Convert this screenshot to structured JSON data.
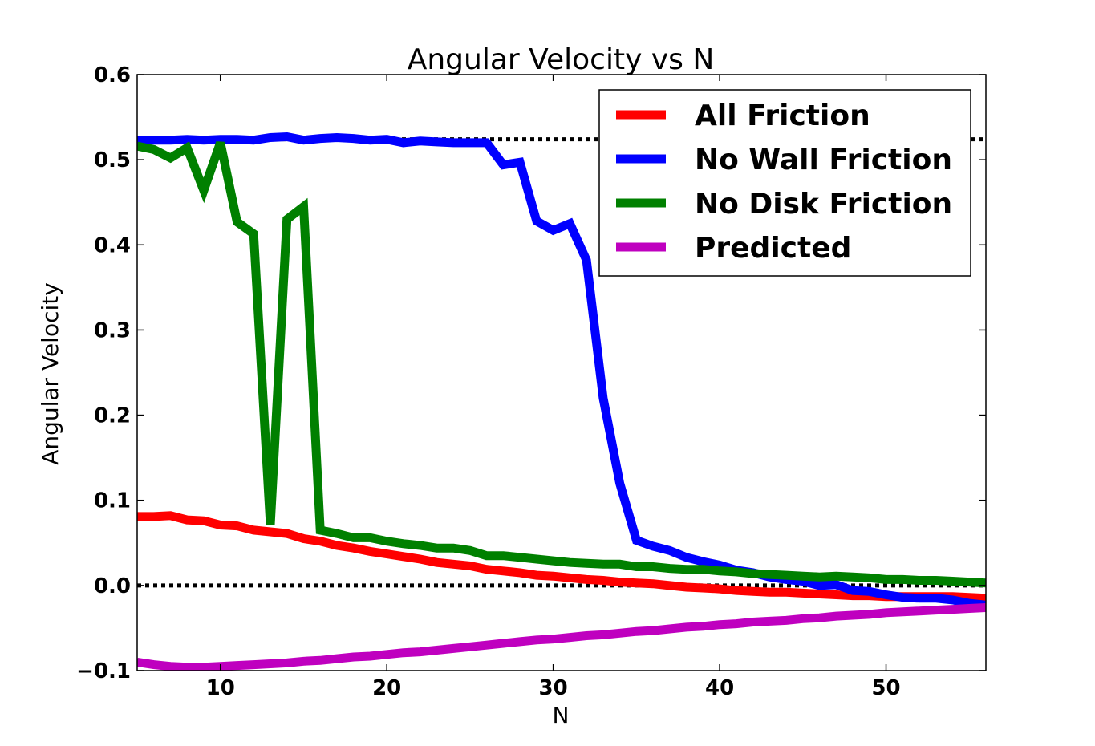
{
  "chart_data": {
    "type": "line",
    "title": "Angular Velocity vs N",
    "xlabel": "N",
    "ylabel": "Angular Velocity",
    "xlim": [
      5,
      56
    ],
    "ylim": [
      -0.1,
      0.6
    ],
    "xticks": [
      10,
      20,
      30,
      40,
      50
    ],
    "xtick_labels": [
      "10",
      "20",
      "30",
      "40",
      "50"
    ],
    "yticks": [
      -0.1,
      0.0,
      0.1,
      0.2,
      0.3,
      0.4,
      0.5,
      0.6
    ],
    "ytick_labels": [
      "−0.1",
      "0.0",
      "0.1",
      "0.2",
      "0.3",
      "0.4",
      "0.5",
      "0.6"
    ],
    "grid": false,
    "legend_position": "top-right",
    "reference_lines": [
      {
        "y": 0.524,
        "style": "dotted",
        "color": "#000000"
      },
      {
        "y": 0.0,
        "style": "dotted",
        "color": "#000000"
      }
    ],
    "x": [
      5,
      6,
      7,
      8,
      9,
      10,
      11,
      12,
      13,
      14,
      15,
      16,
      17,
      18,
      19,
      20,
      21,
      22,
      23,
      24,
      25,
      26,
      27,
      28,
      29,
      30,
      31,
      32,
      33,
      34,
      35,
      36,
      37,
      38,
      39,
      40,
      41,
      42,
      43,
      44,
      45,
      46,
      47,
      48,
      49,
      50,
      51,
      52,
      53,
      54,
      55,
      56
    ],
    "series": [
      {
        "name": "All Friction",
        "color": "#ff0000",
        "values": [
          0.081,
          0.081,
          0.082,
          0.077,
          0.076,
          0.071,
          0.07,
          0.065,
          0.063,
          0.061,
          0.055,
          0.052,
          0.047,
          0.044,
          0.04,
          0.037,
          0.034,
          0.031,
          0.027,
          0.025,
          0.023,
          0.019,
          0.017,
          0.015,
          0.012,
          0.011,
          0.009,
          0.007,
          0.006,
          0.004,
          0.003,
          0.002,
          0.0,
          -0.002,
          -0.003,
          -0.004,
          -0.006,
          -0.007,
          -0.008,
          -0.008,
          -0.009,
          -0.01,
          -0.011,
          -0.012,
          -0.012,
          -0.013,
          -0.013,
          -0.013,
          -0.013,
          -0.013,
          -0.014,
          -0.015
        ]
      },
      {
        "name": "No Wall Friction",
        "color": "#0000ff",
        "values": [
          0.523,
          0.523,
          0.523,
          0.524,
          0.523,
          0.524,
          0.524,
          0.523,
          0.526,
          0.527,
          0.523,
          0.525,
          0.526,
          0.525,
          0.523,
          0.524,
          0.52,
          0.522,
          0.521,
          0.52,
          0.52,
          0.52,
          0.494,
          0.497,
          0.428,
          0.417,
          0.425,
          0.382,
          0.22,
          0.12,
          0.053,
          0.046,
          0.041,
          0.033,
          0.028,
          0.024,
          0.018,
          0.015,
          0.01,
          0.007,
          0.005,
          0.0,
          0.001,
          -0.006,
          -0.007,
          -0.011,
          -0.014,
          -0.015,
          -0.015,
          -0.017,
          -0.021,
          -0.023
        ]
      },
      {
        "name": "No Disk Friction",
        "color": "#008000",
        "values": [
          0.516,
          0.512,
          0.502,
          0.514,
          0.464,
          0.52,
          0.427,
          0.413,
          0.071,
          0.43,
          0.445,
          0.065,
          0.061,
          0.056,
          0.056,
          0.052,
          0.049,
          0.047,
          0.044,
          0.044,
          0.041,
          0.035,
          0.035,
          0.033,
          0.031,
          0.029,
          0.027,
          0.026,
          0.025,
          0.025,
          0.022,
          0.022,
          0.02,
          0.019,
          0.019,
          0.017,
          0.016,
          0.014,
          0.013,
          0.012,
          0.011,
          0.01,
          0.011,
          0.01,
          0.009,
          0.007,
          0.007,
          0.006,
          0.006,
          0.005,
          0.004,
          0.003
        ]
      },
      {
        "name": "Predicted",
        "color": "#bf00bf",
        "values": [
          -0.09,
          -0.093,
          -0.095,
          -0.096,
          -0.096,
          -0.095,
          -0.094,
          -0.093,
          -0.092,
          -0.091,
          -0.089,
          -0.088,
          -0.086,
          -0.084,
          -0.083,
          -0.081,
          -0.079,
          -0.078,
          -0.076,
          -0.074,
          -0.072,
          -0.07,
          -0.068,
          -0.066,
          -0.064,
          -0.063,
          -0.061,
          -0.059,
          -0.058,
          -0.056,
          -0.054,
          -0.053,
          -0.051,
          -0.049,
          -0.048,
          -0.046,
          -0.045,
          -0.043,
          -0.042,
          -0.041,
          -0.039,
          -0.038,
          -0.036,
          -0.035,
          -0.034,
          -0.032,
          -0.031,
          -0.03,
          -0.029,
          -0.028,
          -0.027,
          -0.026
        ]
      }
    ]
  }
}
